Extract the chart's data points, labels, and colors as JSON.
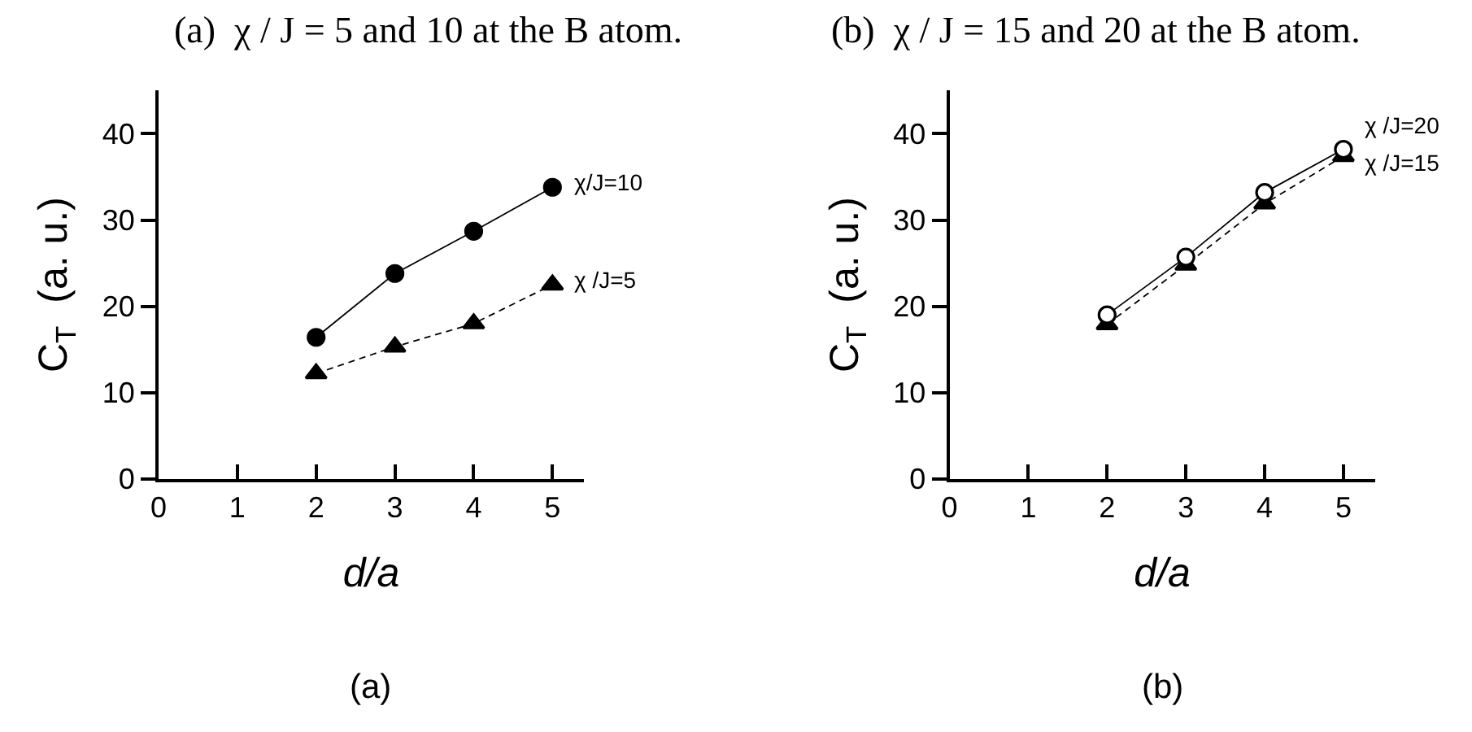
{
  "chart_data": [
    {
      "type": "line",
      "title": "(a)  χ / J = 5 and 10 at the B atom.",
      "xlabel": "d/a",
      "ylabel": "C$_{T}$  (a. u.)",
      "annotations": [
        "(a)"
      ],
      "x": [
        2,
        3,
        4,
        5
      ],
      "series": [
        {
          "name": "χ/J=10",
          "color": "#000000",
          "values": [
            16.4,
            23.8,
            28.7,
            33.8
          ],
          "marker": "circle",
          "line_style": "solid"
        },
        {
          "name": "χ /J=5",
          "color": "#000000",
          "values": [
            12.2,
            15.3,
            18.0,
            22.5
          ],
          "marker": "triangle",
          "line_style": "dashed"
        }
      ],
      "xlim": [
        0,
        5.4
      ],
      "ylim": [
        0,
        45
      ],
      "xticks": [
        0,
        1,
        2,
        3,
        4,
        5
      ],
      "yticks": [
        0,
        10,
        20,
        30,
        40
      ]
    },
    {
      "type": "line",
      "title": "(b)  χ / J = 15 and 20 at the B atom.",
      "xlabel": "d/a",
      "ylabel": "C$_{T}$  (a. u.)",
      "annotations": [
        "(b)"
      ],
      "x": [
        2,
        3,
        4,
        5
      ],
      "series": [
        {
          "name": "χ /J=20",
          "color": "#000000",
          "colors": [
            "#ffffff",
            "#ffffff",
            "#ffffff",
            "#ffffff"
          ],
          "values": [
            19.0,
            25.7,
            33.2,
            38.2
          ],
          "marker": "circle",
          "line_style": "solid"
        },
        {
          "name": "χ /J=15",
          "color": "#000000",
          "values": [
            17.9,
            24.8,
            31.9,
            37.4
          ],
          "marker": "triangle",
          "line_style": "dashed"
        }
      ],
      "xlim": [
        0,
        5.4
      ],
      "ylim": [
        0,
        45
      ],
      "xticks": [
        0,
        1,
        2,
        3,
        4,
        5
      ],
      "yticks": [
        0,
        10,
        20,
        30,
        40
      ]
    }
  ]
}
